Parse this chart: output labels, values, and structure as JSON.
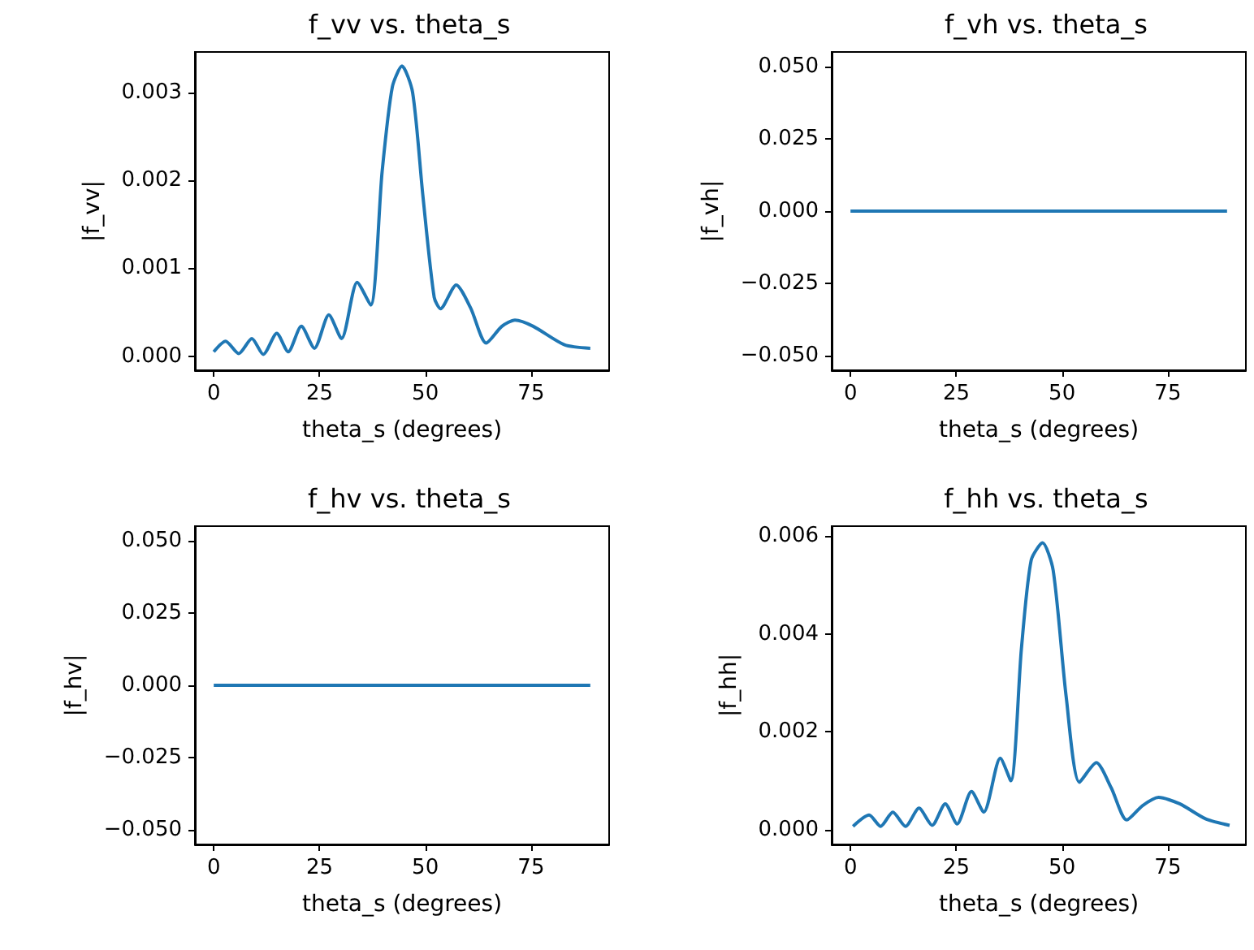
{
  "chart_data": [
    {
      "type": "line",
      "title": "f_vv vs. theta_s",
      "xlabel": "theta_s (degrees)",
      "ylabel": "|f_vv|",
      "xlim": [
        -4.45,
        93.45
      ],
      "xticks": [
        0,
        25,
        50,
        75
      ],
      "ylim": [
        -0.00016,
        0.00346
      ],
      "yticks": [
        {
          "value": 0,
          "label": "0.000"
        },
        {
          "value": 0.001,
          "label": "0.001"
        },
        {
          "value": 0.002,
          "label": "0.002"
        },
        {
          "value": 0.003,
          "label": "0.003"
        }
      ],
      "series": [
        {
          "color": "#1f77b4",
          "x": [
            0,
            2.8,
            5.9,
            9,
            11.7,
            14.9,
            17.6,
            20.7,
            23.8,
            27.2,
            30.2,
            33.9,
            37.1,
            39.8,
            42.2,
            44.5,
            47,
            49.4,
            52.1,
            53.6,
            57.3,
            60.7,
            64.4,
            68.1,
            71.2,
            75.5,
            82.9,
            89
          ],
          "values": [
            5e-05,
            0.00017,
            3e-05,
            0.0002,
            2e-05,
            0.00026,
            5e-05,
            0.00034,
            9e-05,
            0.00047,
            0.0002,
            0.00084,
            0.00058,
            0.0021,
            0.00306,
            0.0033,
            0.003,
            0.00184,
            0.00067,
            0.00054,
            0.00081,
            0.00055,
            0.00015,
            0.00034,
            0.00041,
            0.00034,
            0.00013,
            9e-05
          ]
        }
      ]
    },
    {
      "type": "line",
      "title": "f_vh vs. theta_s",
      "xlabel": "theta_s (degrees)",
      "ylabel": "|f_vh|",
      "xlim": [
        -4.45,
        93.45
      ],
      "xticks": [
        0,
        25,
        50,
        75
      ],
      "ylim": [
        -0.055,
        0.055
      ],
      "yticks": [
        {
          "value": -0.05,
          "label": "−0.050"
        },
        {
          "value": -0.025,
          "label": "−0.025"
        },
        {
          "value": 0,
          "label": "0.000"
        },
        {
          "value": 0.025,
          "label": "0.025"
        },
        {
          "value": 0.05,
          "label": "0.050"
        }
      ],
      "series": [
        {
          "color": "#1f77b4",
          "x": [
            0,
            89
          ],
          "values": [
            0,
            0
          ]
        }
      ]
    },
    {
      "type": "line",
      "title": "f_hv vs. theta_s",
      "xlabel": "theta_s (degrees)",
      "ylabel": "|f_hv|",
      "xlim": [
        -4.45,
        93.45
      ],
      "xticks": [
        0,
        25,
        50,
        75
      ],
      "ylim": [
        -0.055,
        0.055
      ],
      "yticks": [
        {
          "value": -0.05,
          "label": "−0.050"
        },
        {
          "value": -0.025,
          "label": "−0.025"
        },
        {
          "value": 0,
          "label": "0.000"
        },
        {
          "value": 0.025,
          "label": "0.025"
        },
        {
          "value": 0.05,
          "label": "0.050"
        }
      ],
      "series": [
        {
          "color": "#1f77b4",
          "x": [
            0,
            89
          ],
          "values": [
            0,
            0
          ]
        }
      ]
    },
    {
      "type": "line",
      "title": "f_hh vs. theta_s",
      "xlabel": "theta_s (degrees)",
      "ylabel": "|f_hh|",
      "xlim": [
        -4.45,
        93.45
      ],
      "xticks": [
        0,
        25,
        50,
        75
      ],
      "ylim": [
        -0.0003,
        0.0062
      ],
      "yticks": [
        {
          "value": 0,
          "label": "0.000"
        },
        {
          "value": 0.002,
          "label": "0.002"
        },
        {
          "value": 0.004,
          "label": "0.004"
        },
        {
          "value": 0.006,
          "label": "0.006"
        }
      ],
      "series": [
        {
          "color": "#1f77b4",
          "x": [
            0.6,
            4.4,
            7.1,
            10,
            13,
            16.2,
            19.3,
            22.4,
            25.2,
            28.6,
            31.5,
            35.4,
            37.9,
            40.4,
            42.7,
            45.4,
            47.9,
            51,
            54.1,
            58.1,
            61.6,
            65.3,
            69,
            72.8,
            77.8,
            84,
            89.6
          ],
          "values": [
            7e-05,
            0.0003,
            7e-05,
            0.00036,
            7e-05,
            0.00044,
            9e-05,
            0.00053,
            0.00012,
            0.00078,
            0.00036,
            0.00146,
            0.001,
            0.0037,
            0.0055,
            0.00586,
            0.0053,
            0.0027,
            0.00097,
            0.00137,
            0.00086,
            0.0002,
            0.00049,
            0.00066,
            0.00053,
            0.00022,
            9e-05
          ]
        }
      ]
    }
  ]
}
